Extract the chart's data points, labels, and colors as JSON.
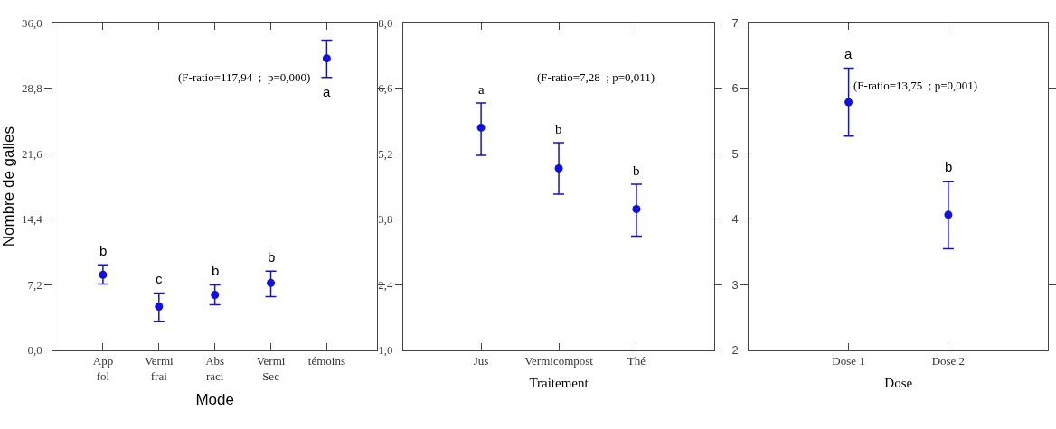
{
  "chart_data": [
    {
      "type": "scatter",
      "xlabel": "Mode",
      "ylabel": "Nombre de galles",
      "categories": [
        "App\nfol",
        "Vermi\nfrai",
        "Abs\nraci",
        "Vermi\nSec",
        "témoins"
      ],
      "series": [
        {
          "color": "#1010e0",
          "values": [
            8.3,
            4.8,
            6.1,
            7.4,
            32.1
          ],
          "errors": [
            [
              7.3,
              9.4
            ],
            [
              3.2,
              6.3
            ],
            [
              5.0,
              7.2
            ],
            [
              5.9,
              8.7
            ],
            [
              30.0,
              34.1
            ]
          ]
        }
      ],
      "ylim": [
        0,
        36
      ],
      "yticks": [
        {
          "value": 0,
          "label": "0,0"
        },
        {
          "value": 7.2,
          "label": "7,2"
        },
        {
          "value": 14.4,
          "label": "14,4"
        },
        {
          "value": 21.6,
          "label": "21,6"
        },
        {
          "value": 28.8,
          "label": "28,8"
        },
        {
          "value": 36,
          "label": "36,0"
        }
      ],
      "marker": "circle",
      "annotations": [
        "(F-ratio=117,94  ;  p=0,000)",
        "b",
        "c",
        "b",
        "b",
        "a"
      ]
    },
    {
      "type": "scatter",
      "xlabel": "Traitement",
      "categories": [
        "Jus",
        "Vermicompost",
        "Thé"
      ],
      "series": [
        {
          "color": "#1010e0",
          "values": [
            5.76,
            4.89,
            4.02
          ],
          "errors": [
            [
              5.17,
              6.29
            ],
            [
              4.34,
              5.44
            ],
            [
              3.44,
              4.55
            ]
          ]
        }
      ],
      "ylim": [
        1,
        8
      ],
      "yticks": [
        {
          "value": 1,
          "label": "1,0"
        },
        {
          "value": 2.4,
          "label": "2,4"
        },
        {
          "value": 3.8,
          "label": "3,8"
        },
        {
          "value": 5.2,
          "label": "5,2"
        },
        {
          "value": 6.6,
          "label": "6,6"
        },
        {
          "value": 8,
          "label": "8,0"
        }
      ],
      "marker": "circle",
      "annotations": [
        "(F-ratio=7,28  ; p=0,011)",
        "a",
        "b",
        "b"
      ]
    },
    {
      "type": "scatter",
      "xlabel": "Dose",
      "categories": [
        "Dose 1",
        "Dose 2"
      ],
      "series": [
        {
          "color": "#1010e0",
          "values": [
            5.79,
            4.07
          ],
          "errors": [
            [
              5.27,
              6.31
            ],
            [
              3.55,
              4.58
            ]
          ]
        }
      ],
      "ylim": [
        2,
        7
      ],
      "yticks": [
        2,
        3,
        4,
        5,
        6,
        7
      ],
      "marker": "circle",
      "annotations": [
        "(F-ratio=13,75  ; p=0,001)",
        "a",
        "b"
      ]
    }
  ]
}
